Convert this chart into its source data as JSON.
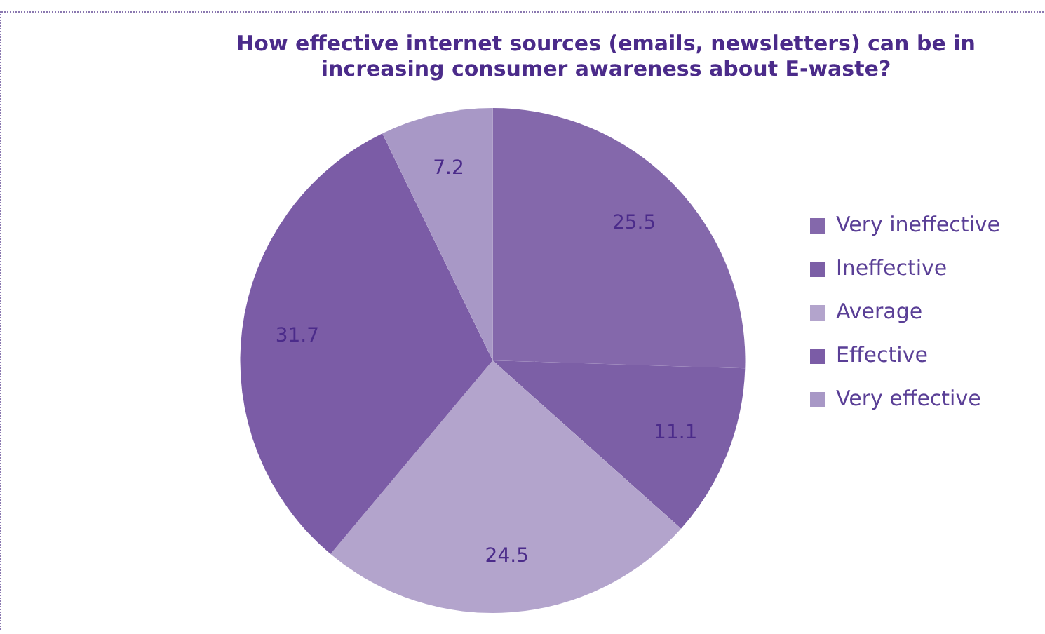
{
  "chart_data": {
    "type": "pie",
    "title": "How effective internet sources (emails, newsletters) can be in increasing consumer awareness about E-waste?",
    "categories": [
      "Very ineffective",
      "Ineffective",
      "Average",
      "Effective",
      "Very effective"
    ],
    "values": [
      25.5,
      11.1,
      24.5,
      31.7,
      7.2
    ],
    "colors": [
      "#8468ab",
      "#7c5fa6",
      "#b3a4cc",
      "#7b5ca6",
      "#a898c6"
    ],
    "data_labels": true,
    "legend": "right"
  }
}
